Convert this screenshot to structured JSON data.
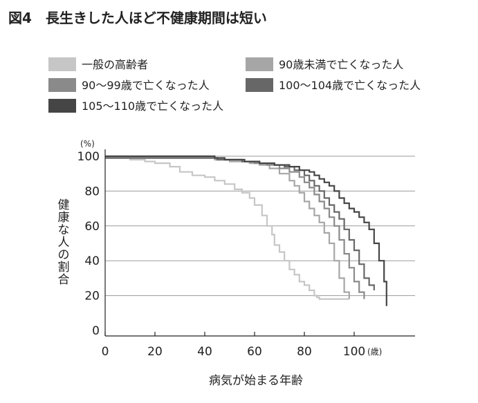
{
  "figure": {
    "title": "図4　長生きした人ほど不健康期間は短い"
  },
  "chart_data": {
    "type": "line",
    "title": "図4　長生きした人ほど不健康期間は短い",
    "xlabel": "病気が始まる年齢",
    "x_unit": "(歳)",
    "ylabel": "健康な人の割合",
    "y_unit": "(%)",
    "xlim": [
      0,
      120
    ],
    "ylim": [
      0,
      100
    ],
    "x_ticks": [
      "0",
      "20",
      "40",
      "60",
      "80",
      "100"
    ],
    "y_ticks": [
      "0",
      "20",
      "40",
      "60",
      "80",
      "100"
    ],
    "grid": "horizontal",
    "legend_position": "top",
    "series": [
      {
        "name": "一般の高齢者",
        "color": "#c6c6c6",
        "x": [
          0,
          10,
          16,
          20,
          26,
          30,
          35,
          40,
          44,
          48,
          52,
          55,
          58,
          60,
          63,
          65,
          67,
          68,
          70,
          72,
          74,
          76,
          78,
          80,
          82,
          84,
          85,
          86,
          87,
          88,
          90,
          93,
          96,
          98
        ],
        "y": [
          99,
          98,
          97,
          96,
          94,
          91,
          89,
          88,
          86,
          84,
          81,
          79,
          76,
          72,
          66,
          60,
          55,
          49,
          45,
          40,
          35,
          32,
          28,
          26,
          23,
          20,
          19,
          18,
          18,
          18,
          18,
          18,
          18,
          18
        ]
      },
      {
        "name": "90歳未満で亡くなった人",
        "color": "#a6a6a6",
        "x": [
          0,
          10,
          30,
          44,
          50,
          58,
          62,
          66,
          70,
          74,
          76,
          78,
          80,
          82,
          84,
          86,
          88,
          90,
          92,
          94,
          96,
          98
        ],
        "y": [
          99,
          99,
          99,
          98,
          97,
          96,
          95,
          93,
          90,
          86,
          83,
          79,
          74,
          70,
          66,
          62,
          56,
          50,
          40,
          30,
          22,
          18
        ]
      },
      {
        "name": "90〜99歳で亡くなった人",
        "color": "#8a8a8a",
        "x": [
          0,
          10,
          30,
          45,
          55,
          60,
          65,
          70,
          74,
          78,
          80,
          82,
          84,
          86,
          88,
          90,
          92,
          94,
          96,
          98,
          100,
          102,
          104
        ],
        "y": [
          99,
          99,
          99,
          98,
          97,
          96,
          95,
          93,
          91,
          88,
          85,
          82,
          78,
          74,
          70,
          65,
          60,
          52,
          44,
          36,
          28,
          22,
          18
        ]
      },
      {
        "name": "100〜104歳で亡くなった人",
        "color": "#676767",
        "x": [
          0,
          10,
          30,
          45,
          55,
          62,
          68,
          72,
          76,
          80,
          82,
          84,
          86,
          88,
          90,
          92,
          94,
          96,
          98,
          100,
          102,
          104,
          106,
          108
        ],
        "y": [
          99,
          99,
          99,
          98,
          97,
          96,
          95,
          94,
          92,
          89,
          86,
          83,
          80,
          76,
          72,
          68,
          64,
          58,
          52,
          46,
          38,
          30,
          26,
          23
        ]
      },
      {
        "name": "105〜110歳で亡くなった人",
        "color": "#454545",
        "x": [
          0,
          10,
          30,
          44,
          48,
          56,
          62,
          68,
          74,
          78,
          82,
          84,
          86,
          88,
          90,
          92,
          94,
          96,
          98,
          100,
          102,
          104,
          106,
          108,
          110,
          112,
          113
        ],
        "y": [
          100,
          100,
          100,
          99,
          98,
          97,
          96,
          95,
          94,
          92,
          91,
          89,
          87,
          85,
          83,
          80,
          76,
          73,
          70,
          68,
          65,
          62,
          58,
          50,
          40,
          28,
          14
        ]
      }
    ]
  }
}
